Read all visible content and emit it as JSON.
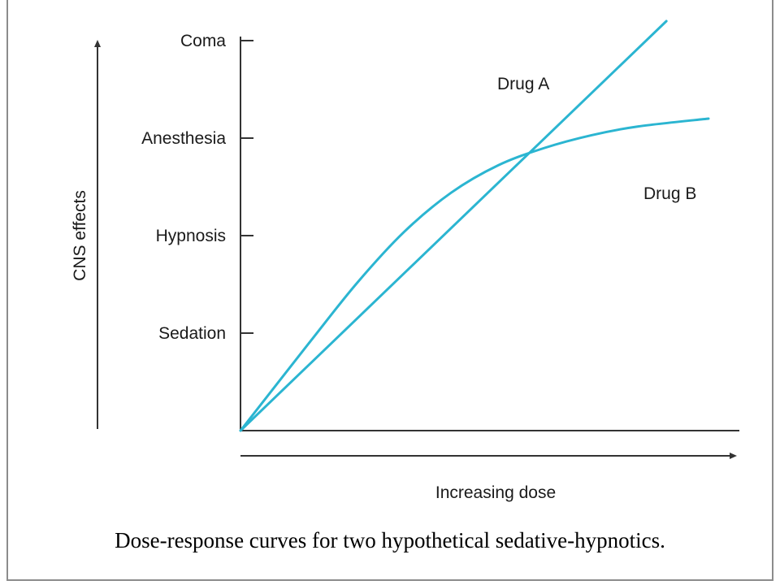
{
  "caption": "Dose-response curves for two hypothetical sedative-hypnotics.",
  "chart_data": {
    "type": "line",
    "title": "",
    "xlabel": "Increasing dose",
    "ylabel": "CNS effects",
    "ytick_labels": [
      "Sedation",
      "Hypnosis",
      "Anesthesia",
      "Coma"
    ],
    "ylim": [
      0,
      4.2
    ],
    "xlim": [
      0,
      10
    ],
    "grid": false,
    "legend": "none",
    "series": [
      {
        "name": "Drug A",
        "color": "#2bb5d1",
        "x": [
          0,
          9.1
        ],
        "y": [
          0,
          4.2
        ]
      },
      {
        "name": "Drug B",
        "color": "#2bb5d1",
        "x": [
          0,
          1.5,
          2.5,
          3.5,
          4.5,
          5.5,
          6.5,
          7.5,
          8.5,
          10
        ],
        "y": [
          0,
          0.92,
          1.52,
          2.04,
          2.44,
          2.72,
          2.9,
          3.03,
          3.12,
          3.2
        ]
      }
    ]
  }
}
